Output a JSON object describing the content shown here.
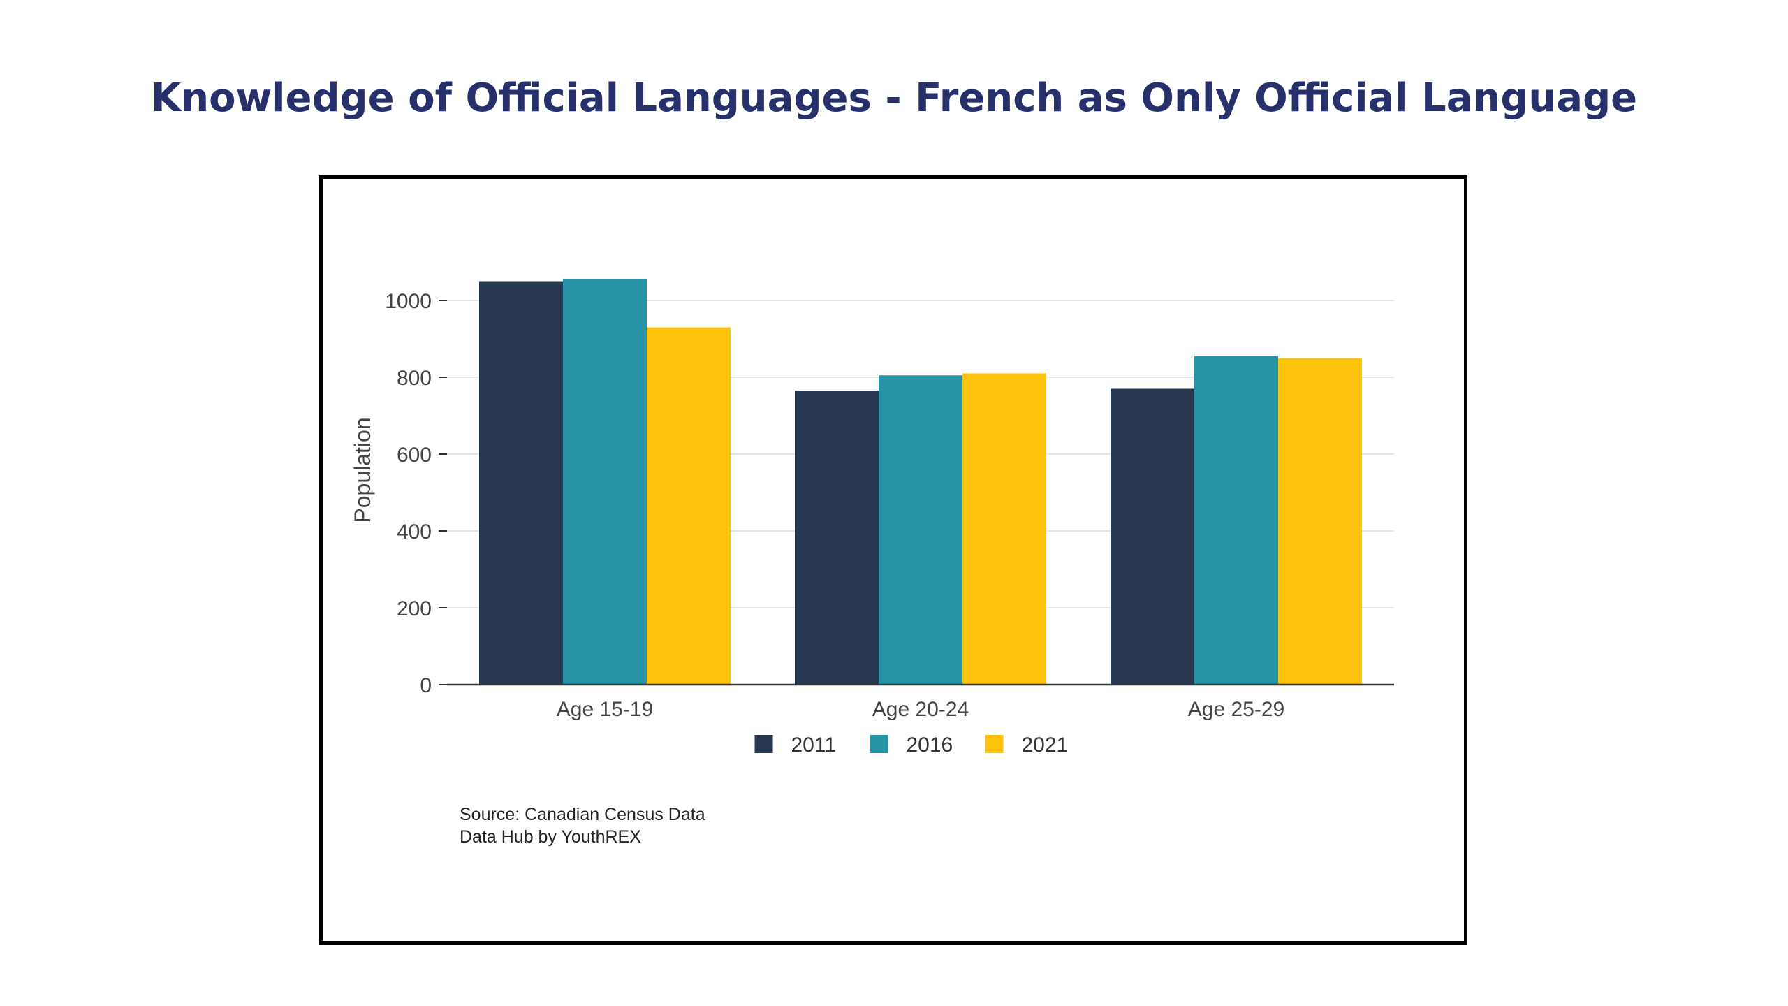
{
  "page": {
    "title": "Knowledge of Official Languages - French as Only Official Language"
  },
  "colors": {
    "title": "#27306b",
    "series_2011": "#27374f",
    "series_2016": "#2793a6",
    "series_2021": "#fdc20c",
    "grid": "#e6e6e6",
    "axis": "#333333"
  },
  "source": {
    "line1": "Source: Canadian Census Data",
    "line2": "Data Hub by YouthREX"
  },
  "chart_data": {
    "type": "bar",
    "title": "",
    "xlabel": "",
    "ylabel": "Population",
    "categories": [
      "Age 15-19",
      "Age 20-24",
      "Age 25-29"
    ],
    "series": [
      {
        "name": "2011",
        "values": [
          1050,
          765,
          770
        ]
      },
      {
        "name": "2016",
        "values": [
          1055,
          805,
          855
        ]
      },
      {
        "name": "2021",
        "values": [
          930,
          810,
          850
        ]
      }
    ],
    "yticks": [
      0,
      200,
      400,
      600,
      800,
      1000
    ],
    "ylim": [
      0,
      1060
    ],
    "grid": true,
    "legend_position": "bottom"
  }
}
